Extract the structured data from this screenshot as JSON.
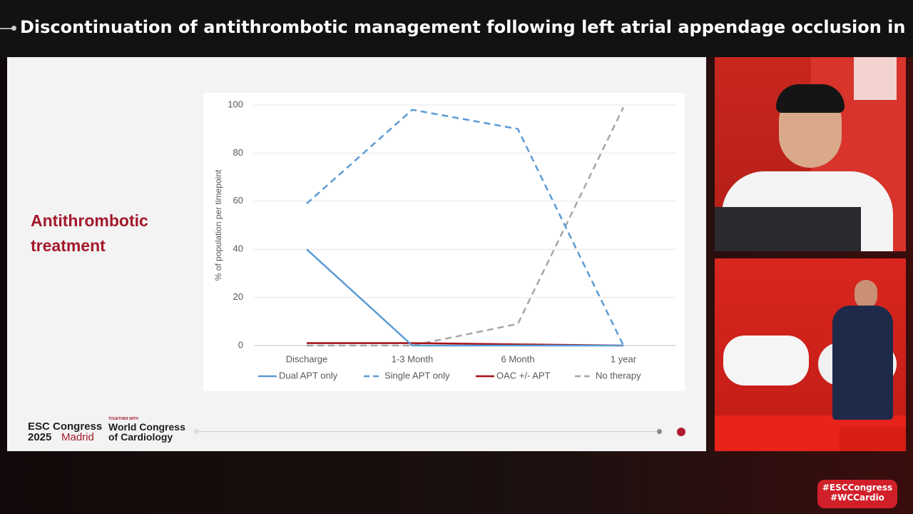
{
  "header": {
    "title": "Discontinuation of antithrombotic management following left atrial appendage occlusion in high bl..."
  },
  "slide": {
    "heading": "Antithrombotic treatment",
    "branding": {
      "congress": "ESC Congress",
      "year": "2025",
      "city": "Madrid",
      "together": "TOGETHER WITH",
      "partner_line1": "World Congress",
      "partner_line2": "of Cardiology"
    }
  },
  "hashtags": [
    "#ESCCongress",
    "#WCCardio"
  ],
  "chart_data": {
    "type": "line",
    "y_label": "% of population per timepoint",
    "categories": [
      "Discharge",
      "1-3 Month",
      "6 Month",
      "1 year"
    ],
    "series": [
      {
        "name": "Dual APT only",
        "color": "#5b9bd5",
        "style": "solid",
        "values": [
          40,
          0,
          0,
          0
        ]
      },
      {
        "name": "Single APT only",
        "color": "#5b9bd5",
        "style": "dashed",
        "values": [
          59,
          98,
          90,
          0
        ]
      },
      {
        "name": "OAC +/- APT",
        "color": "#a50f15",
        "style": "solid",
        "values": [
          1,
          1,
          0.5,
          0
        ]
      },
      {
        "name": "No therapy",
        "color": "#a6a6a6",
        "style": "dashed",
        "values": [
          0,
          0,
          9,
          99
        ]
      }
    ],
    "ylim": [
      0,
      100
    ],
    "yticks": [
      0,
      20,
      40,
      60,
      80,
      100
    ],
    "grid": true,
    "legend": "bottom"
  }
}
